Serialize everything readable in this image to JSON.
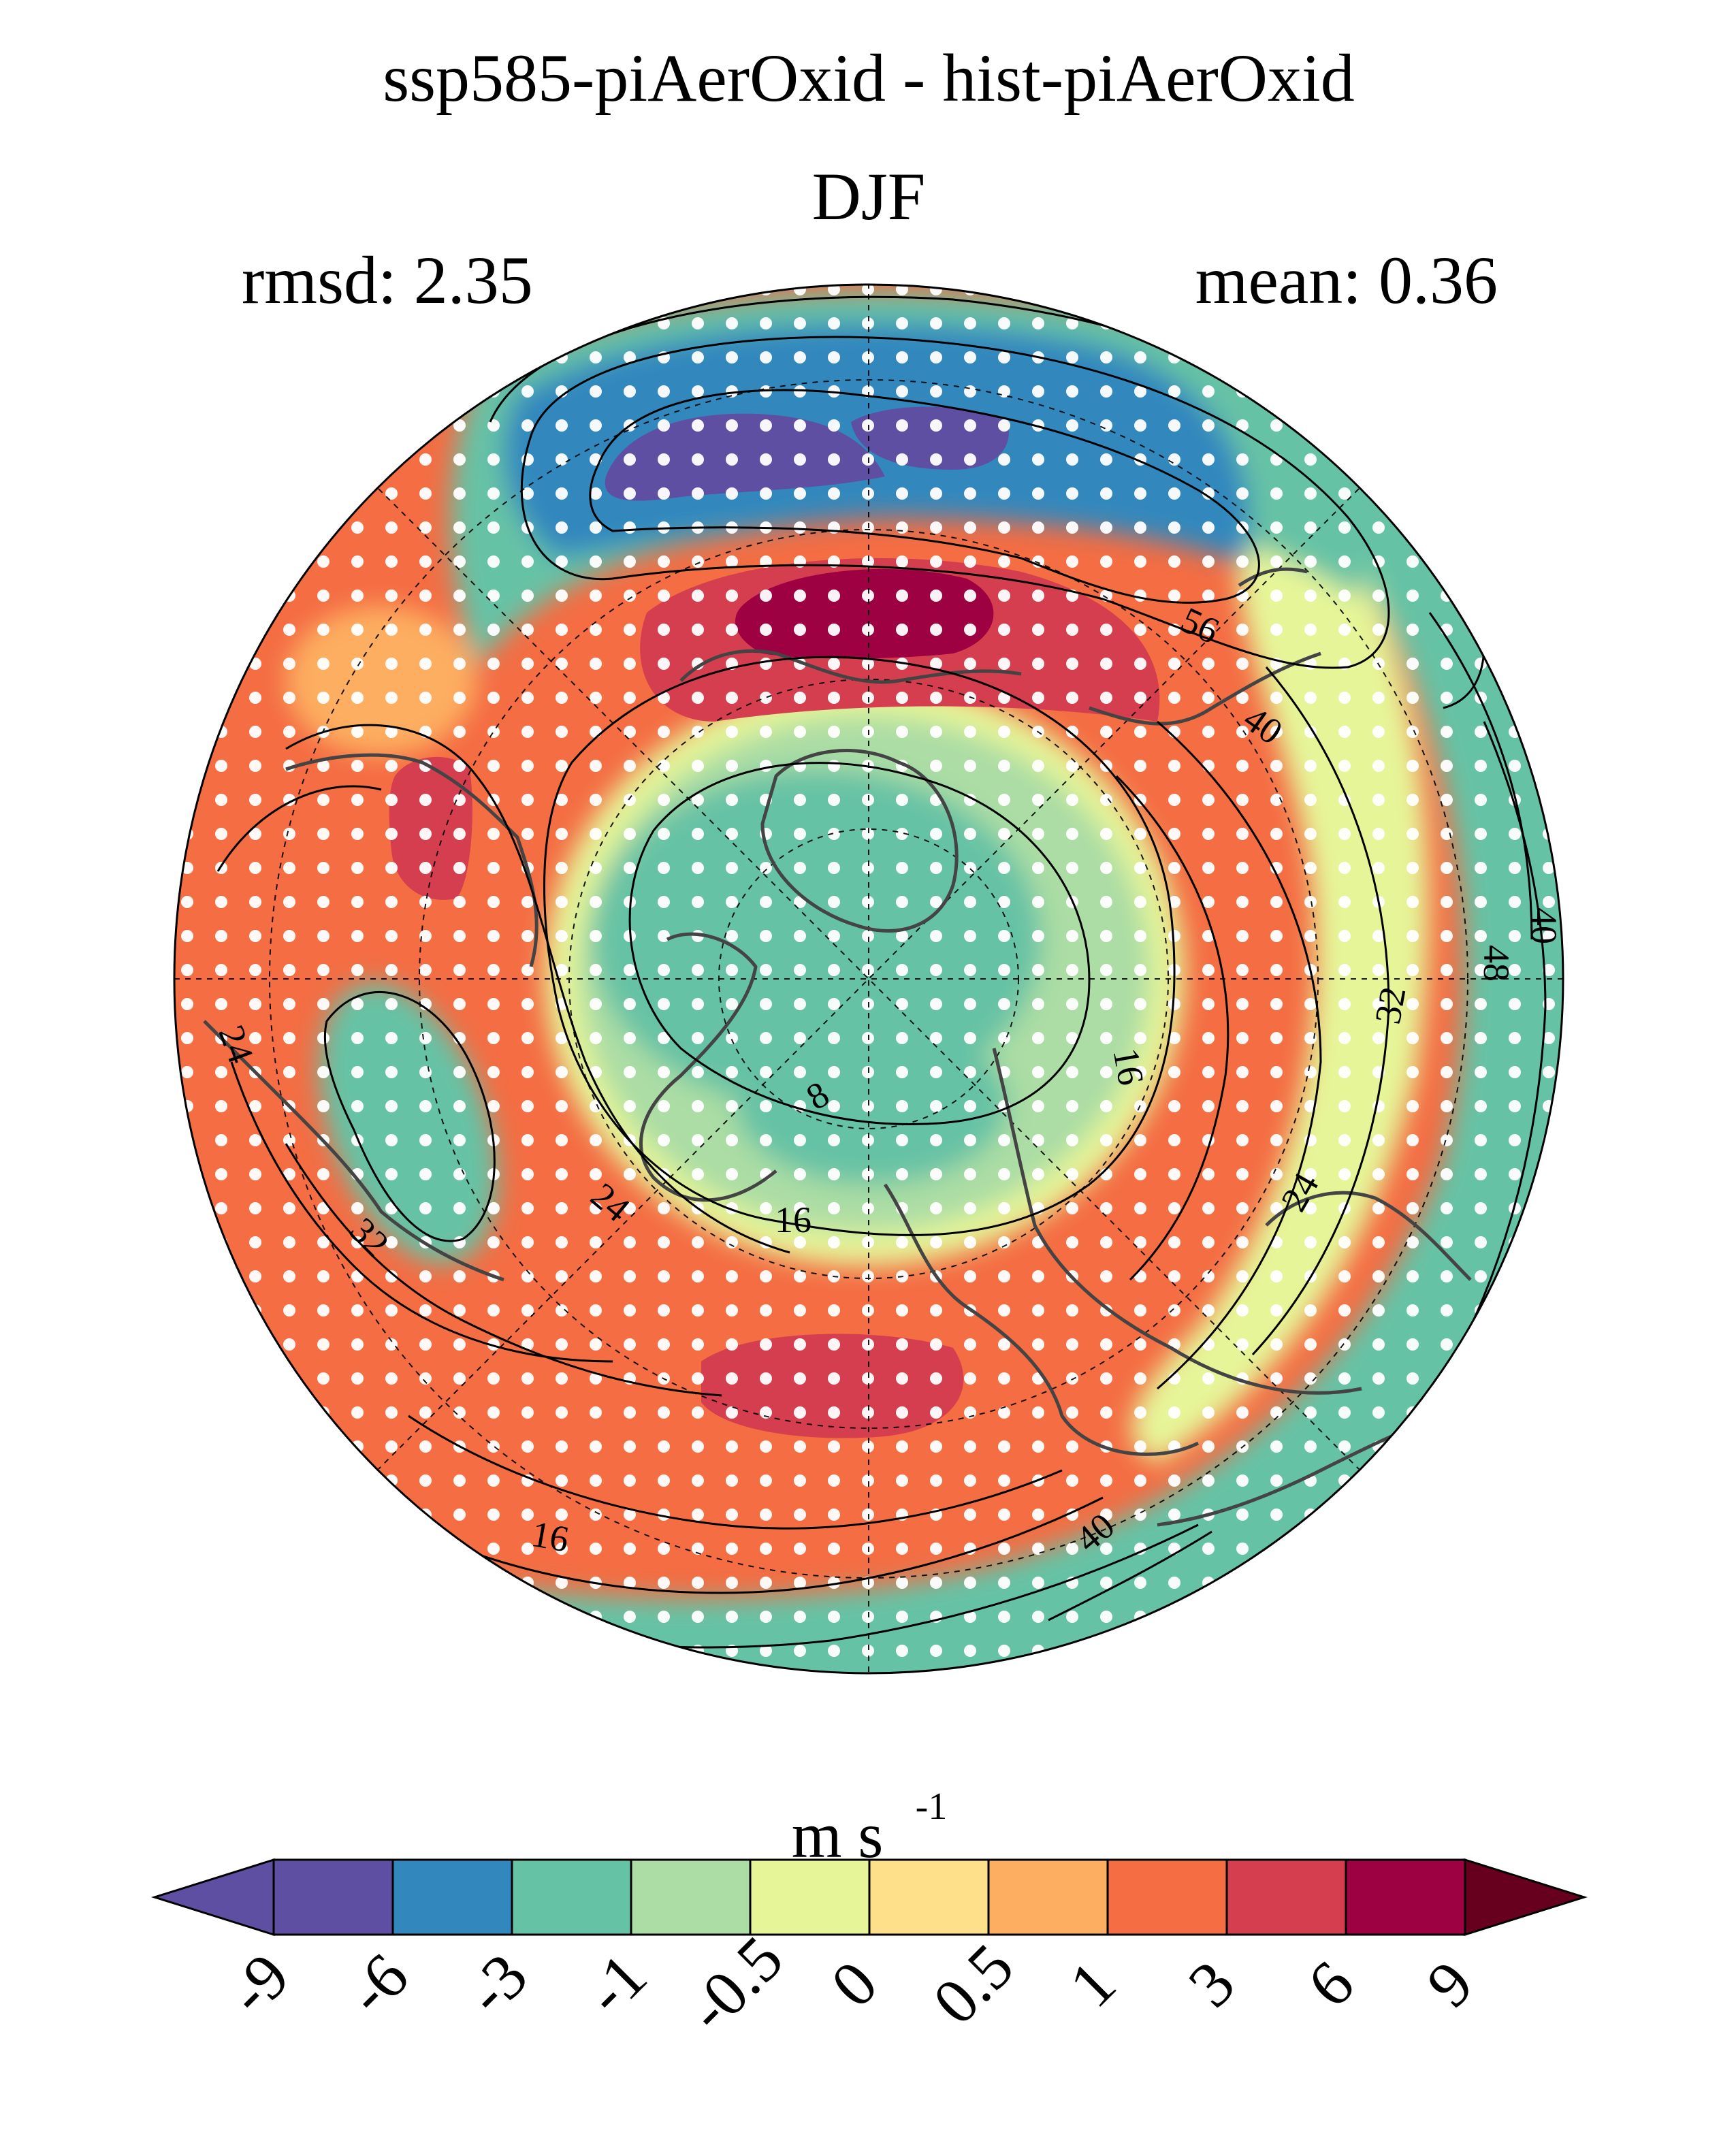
{
  "figure": {
    "title": "ssp585-piAerOxid - hist-piAerOxid",
    "season": "DJF",
    "rmsd_label": "rmsd: 2.35",
    "mean_label": "mean: 0.36"
  },
  "colorbar": {
    "units_base": "m s",
    "units_exponent": "-1",
    "ticks": [
      "-9",
      "-6",
      "-3",
      "-1",
      "-0.5",
      "0",
      "0.5",
      "1",
      "3",
      "6",
      "9"
    ],
    "colors": [
      "#5e4fa2",
      "#5e4fa2",
      "#3288bd",
      "#66c2a5",
      "#abdda4",
      "#e6f598",
      "#fee08b",
      "#fdae61",
      "#f46d43",
      "#d53e4f",
      "#9e0142",
      "#67001f"
    ],
    "extend": "both"
  },
  "map": {
    "projection": "north polar stereographic",
    "contour_labels": [
      "56",
      "40",
      "40",
      "48",
      "32",
      "16",
      "24",
      "8",
      "16",
      "24",
      "24",
      "32",
      "16",
      "40"
    ]
  }
}
